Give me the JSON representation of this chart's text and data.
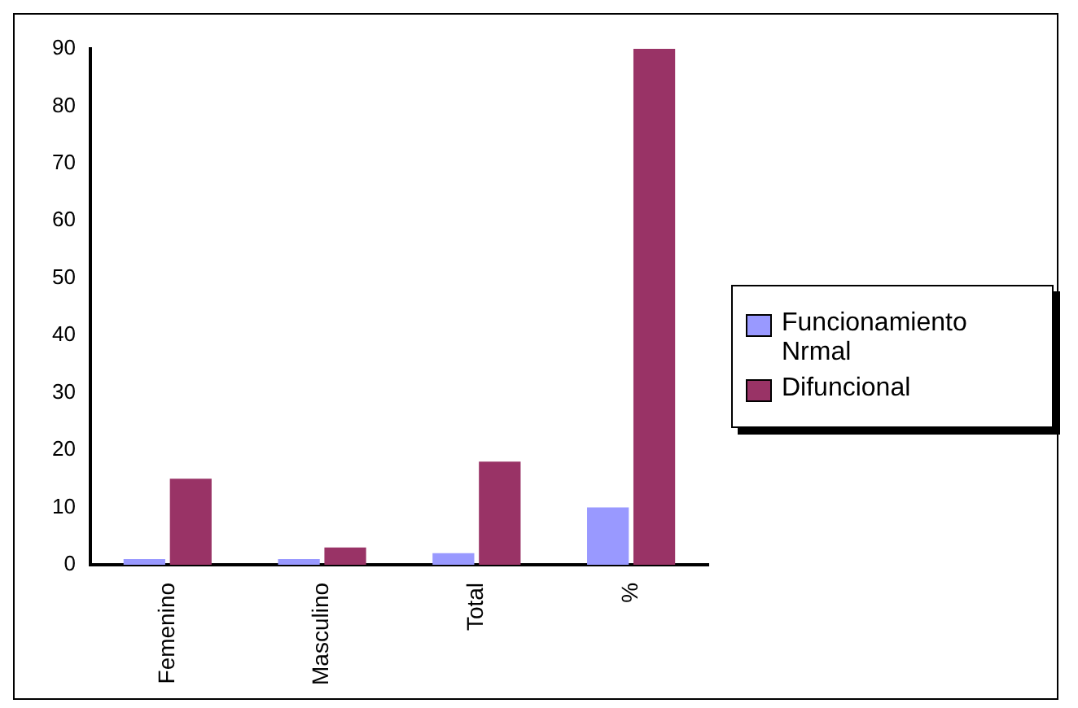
{
  "chart_data": {
    "type": "bar",
    "categories": [
      "Femenino",
      "Masculino",
      "Total",
      "%"
    ],
    "series": [
      {
        "name": "Funcionamiento Nrmal",
        "color": "#9999ff",
        "values": [
          1,
          1,
          2,
          10
        ]
      },
      {
        "name": "Difuncional",
        "color": "#993366",
        "values": [
          15,
          3,
          18,
          90
        ]
      }
    ],
    "ylim": [
      0,
      90
    ],
    "yticks": [
      0,
      10,
      20,
      30,
      40,
      50,
      60,
      70,
      80,
      90
    ],
    "grid": false,
    "legend": "right"
  }
}
